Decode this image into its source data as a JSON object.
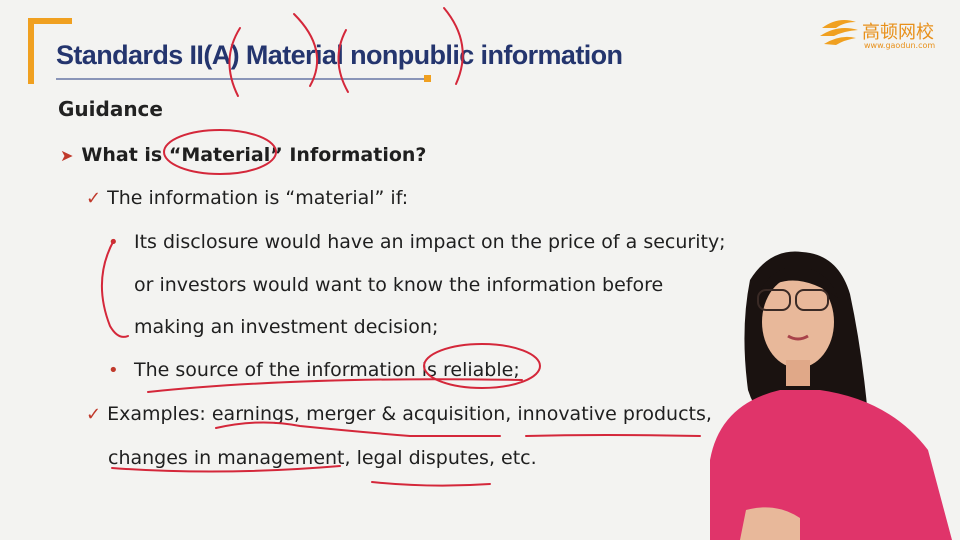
{
  "slide": {
    "title": "Standards II(A) Material nonpublic information",
    "section": "Guidance",
    "heading": "What is “Material” Information?",
    "lines": [
      "The information is “material” if:",
      "Its disclosure would have an impact on the price of a security;",
      "or investors would want to know the information before",
      "making an investment decision;",
      "The source of the information is reliable;",
      "Examples: earnings, merger & acquisition, innovative products,",
      "changes in management, legal disputes, etc."
    ]
  },
  "logo": {
    "name": "高顿网校",
    "url": "www.gaodun.com"
  },
  "colors": {
    "title": "#24356e",
    "accent": "#f0a020",
    "marker": "#c0392b",
    "annotation": "#d4273a",
    "shirt": "#e0346a"
  },
  "icons": [
    "arrow-bullet-icon",
    "checkmark-icon",
    "dot-bullet-icon",
    "gaodun-logo-icon"
  ]
}
